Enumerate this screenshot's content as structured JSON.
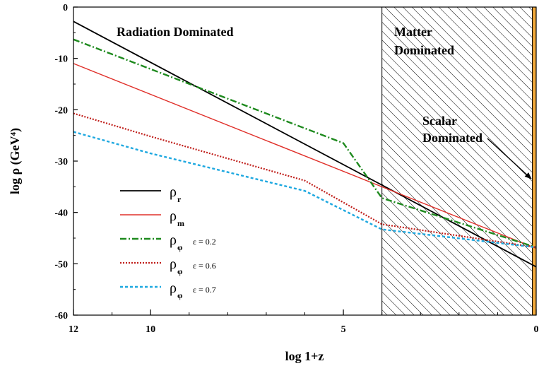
{
  "chart_data": {
    "type": "line",
    "title": "",
    "xlabel": "log 1+z",
    "ylabel": "log ρ (GeV⁴)",
    "xlim": [
      12,
      0
    ],
    "ylim": [
      -60,
      0
    ],
    "x_ticks": [
      12,
      10,
      5,
      0
    ],
    "x_minor_ticks": [
      11,
      9,
      8,
      7,
      6,
      4,
      3,
      2,
      1
    ],
    "y_ticks": [
      0,
      -10,
      -20,
      -30,
      -40,
      -50,
      -60
    ],
    "series": [
      {
        "id": "rho_r",
        "name": "ρ_r",
        "color": "#000000",
        "dash": "solid",
        "x": [
          12,
          0
        ],
        "y": [
          -2.8,
          -50.6
        ]
      },
      {
        "id": "rho_m",
        "name": "ρ_m",
        "color": "#e0302a",
        "dash": "solid",
        "x": [
          12,
          0
        ],
        "y": [
          -11,
          -47
        ]
      },
      {
        "id": "rho_phi_02",
        "name": "ρ_φ ε = 0.2",
        "color": "#1e8a1e",
        "dash": "dashdot",
        "x": [
          12,
          5,
          4,
          0
        ],
        "y": [
          -6.3,
          -26.5,
          -37.2,
          -46.8
        ]
      },
      {
        "id": "rho_phi_06",
        "name": "ρ_φ ε = 0.6",
        "color": "#c0201c",
        "dash": "dotted",
        "x": [
          12,
          10,
          6,
          4,
          0
        ],
        "y": [
          -20.7,
          -25.2,
          -33.8,
          -42.3,
          -46.8
        ]
      },
      {
        "id": "rho_phi_07",
        "name": "ρ_φ ε = 0.7",
        "color": "#1ea8e0",
        "dash": "dashed",
        "x": [
          12,
          10,
          6,
          4,
          0
        ],
        "y": [
          -24.3,
          -28.5,
          -35.8,
          -43.3,
          -46.8
        ]
      }
    ],
    "regions": [
      {
        "id": "matter",
        "label_lines": [
          "Matter",
          "Dominated"
        ],
        "x_range": [
          4,
          0.1
        ],
        "fill": "hatched"
      },
      {
        "id": "scalar",
        "label_lines": [
          "Scalar",
          "Dominated"
        ],
        "x_range": [
          0.1,
          0
        ],
        "fill": "#f2a93b"
      }
    ],
    "annotations": [
      {
        "id": "radiation",
        "text": "Radiation Dominated"
      }
    ],
    "legend": {
      "placement": "bottom-left",
      "entries": [
        {
          "symbol": "ρ",
          "sub": "r",
          "extra": ""
        },
        {
          "symbol": "ρ",
          "sub": "m",
          "extra": ""
        },
        {
          "symbol": "ρ",
          "sub": "φ",
          "extra": "ε = 0.2"
        },
        {
          "symbol": "ρ",
          "sub": "φ",
          "extra": "ε = 0.6"
        },
        {
          "symbol": "ρ",
          "sub": "φ",
          "extra": "ε = 0.7"
        }
      ]
    },
    "grid": false
  }
}
